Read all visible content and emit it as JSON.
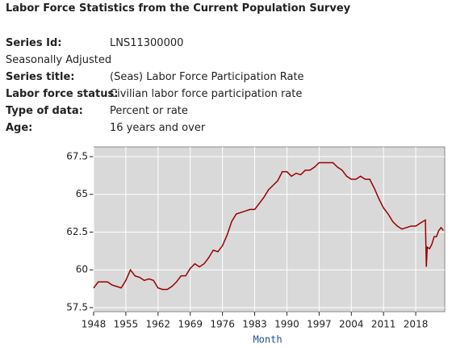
{
  "header": {
    "title": "Labor Force Statistics from the Current Population Survey"
  },
  "metadata": {
    "series_id": {
      "label": "Series Id:",
      "value": "LNS11300000"
    },
    "adjustment": "Seasonally Adjusted",
    "rows": [
      {
        "label": "Series title:",
        "value": "(Seas) Labor Force Participation Rate"
      },
      {
        "label": "Labor force status:",
        "value": "Civilian labor force participation rate"
      },
      {
        "label": "Type of data:",
        "value": "Percent or rate"
      },
      {
        "label": "Age:",
        "value": "16 years and over"
      }
    ]
  },
  "chart_data": {
    "type": "line",
    "x_label": "Month",
    "x": [
      1948,
      1949,
      1950,
      1951,
      1952,
      1953,
      1954,
      1955,
      1956,
      1957,
      1958,
      1959,
      1960,
      1961,
      1962,
      1963,
      1964,
      1965,
      1966,
      1967,
      1968,
      1969,
      1970,
      1971,
      1972,
      1973,
      1974,
      1975,
      1976,
      1977,
      1978,
      1979,
      1980,
      1981,
      1982,
      1983,
      1984,
      1985,
      1986,
      1987,
      1988,
      1989,
      1990,
      1991,
      1992,
      1993,
      1994,
      1995,
      1996,
      1997,
      1998,
      1999,
      2000,
      2001,
      2002,
      2003,
      2004,
      2005,
      2006,
      2007,
      2008,
      2009,
      2010,
      2011,
      2012,
      2013,
      2014,
      2015,
      2016,
      2017,
      2018,
      2019,
      2020.1,
      2020.3,
      2020.5,
      2021,
      2021.5,
      2022,
      2022.5,
      2023,
      2023.5,
      2024
    ],
    "series": [
      {
        "name": "LNS11300000",
        "color": "#990000",
        "values": [
          58.8,
          59.2,
          59.2,
          59.2,
          59.0,
          58.9,
          58.8,
          59.3,
          60.0,
          59.6,
          59.5,
          59.3,
          59.4,
          59.3,
          58.8,
          58.7,
          58.7,
          58.9,
          59.2,
          59.6,
          59.6,
          60.1,
          60.4,
          60.2,
          60.4,
          60.8,
          61.3,
          61.2,
          61.6,
          62.3,
          63.2,
          63.7,
          63.8,
          63.9,
          64.0,
          64.0,
          64.4,
          64.8,
          65.3,
          65.6,
          65.9,
          66.5,
          66.5,
          66.2,
          66.4,
          66.3,
          66.6,
          66.6,
          66.8,
          67.1,
          67.1,
          67.1,
          67.1,
          66.8,
          66.6,
          66.2,
          66.0,
          66.0,
          66.2,
          66.0,
          66.0,
          65.4,
          64.7,
          64.1,
          63.7,
          63.2,
          62.9,
          62.7,
          62.8,
          62.9,
          62.9,
          63.1,
          63.3,
          60.2,
          61.5,
          61.4,
          61.7,
          62.2,
          62.2,
          62.6,
          62.8,
          62.6
        ]
      }
    ],
    "xlim": [
      1948,
      2024.3
    ],
    "xticks": [
      1948,
      1955,
      1962,
      1969,
      1976,
      1983,
      1990,
      1997,
      2004,
      2011,
      2018
    ],
    "ylim": [
      57.23,
      68.14
    ],
    "yticks": [
      57.5,
      60,
      62.5,
      65,
      67.5
    ],
    "grid": true,
    "background": "#d9d9d9"
  }
}
